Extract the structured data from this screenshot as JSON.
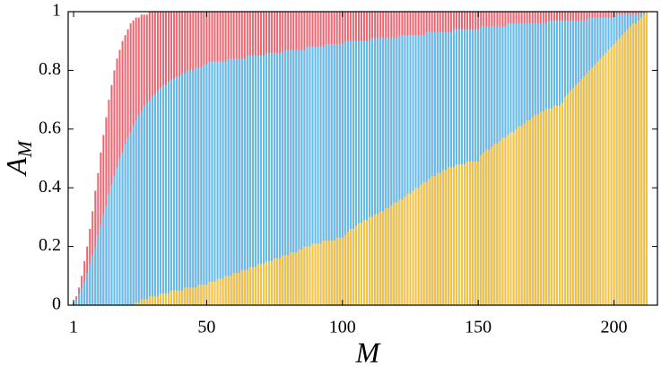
{
  "chart_data": {
    "type": "bar",
    "x_label": "M",
    "y_label": "A",
    "y_label_subscript": "M",
    "xlim": [
      -1,
      216
    ],
    "ylim": [
      0,
      1
    ],
    "xticks": [
      1,
      50,
      100,
      150,
      200
    ],
    "yticks": [
      0,
      0.2,
      0.4,
      0.6,
      0.8,
      1
    ],
    "x": [
      1,
      2,
      3,
      4,
      5,
      6,
      7,
      8,
      9,
      10,
      11,
      12,
      13,
      14,
      15,
      16,
      17,
      18,
      19,
      20,
      21,
      22,
      23,
      24,
      25,
      26,
      27,
      28,
      29,
      30,
      31,
      32,
      33,
      34,
      35,
      36,
      37,
      38,
      39,
      40,
      41,
      42,
      43,
      44,
      45,
      46,
      47,
      48,
      49,
      50,
      51,
      52,
      53,
      54,
      55,
      56,
      57,
      58,
      59,
      60,
      61,
      62,
      63,
      64,
      65,
      66,
      67,
      68,
      69,
      70,
      71,
      72,
      73,
      74,
      75,
      76,
      77,
      78,
      79,
      80,
      81,
      82,
      83,
      84,
      85,
      86,
      87,
      88,
      89,
      90,
      91,
      92,
      93,
      94,
      95,
      96,
      97,
      98,
      99,
      100,
      101,
      102,
      103,
      104,
      105,
      106,
      107,
      108,
      109,
      110,
      111,
      112,
      113,
      114,
      115,
      116,
      117,
      118,
      119,
      120,
      121,
      122,
      123,
      124,
      125,
      126,
      127,
      128,
      129,
      130,
      131,
      132,
      133,
      134,
      135,
      136,
      137,
      138,
      139,
      140,
      141,
      142,
      143,
      144,
      145,
      146,
      147,
      148,
      149,
      150,
      151,
      152,
      153,
      154,
      155,
      156,
      157,
      158,
      159,
      160,
      161,
      162,
      163,
      164,
      165,
      166,
      167,
      168,
      169,
      170,
      171,
      172,
      173,
      174,
      175,
      176,
      177,
      178,
      179,
      180,
      181,
      182,
      183,
      184,
      185,
      186,
      187,
      188,
      189,
      190,
      191,
      192,
      193,
      194,
      195,
      196,
      197,
      198,
      199,
      200,
      201,
      202,
      203,
      204,
      205,
      206,
      207,
      208,
      209,
      210,
      211,
      212
    ],
    "series": [
      {
        "color": "#ec6570",
        "values": [
          0.01,
          0.03,
          0.06,
          0.1,
          0.15,
          0.2,
          0.26,
          0.32,
          0.39,
          0.45,
          0.52,
          0.58,
          0.64,
          0.7,
          0.75,
          0.8,
          0.84,
          0.87,
          0.9,
          0.92,
          0.94,
          0.96,
          0.97,
          0.98,
          0.98,
          0.99,
          0.99,
          0.99,
          1,
          1,
          1,
          1,
          1,
          1,
          1,
          1,
          1,
          1,
          1,
          1,
          1,
          1,
          1,
          1,
          1,
          1,
          1,
          1,
          1,
          1,
          1,
          1,
          1,
          1,
          1,
          1,
          1,
          1,
          1,
          1,
          1,
          1,
          1,
          1,
          1,
          1,
          1,
          1,
          1,
          1,
          1,
          1,
          1,
          1,
          1,
          1,
          1,
          1,
          1,
          1,
          1,
          1,
          1,
          1,
          1,
          1,
          1,
          1,
          1,
          1,
          1,
          1,
          1,
          1,
          1,
          1,
          1,
          1,
          1,
          1,
          1,
          1,
          1,
          1,
          1,
          1,
          1,
          1,
          1,
          1,
          1,
          1,
          1,
          1,
          1,
          1,
          1,
          1,
          1,
          1,
          1,
          1,
          1,
          1,
          1,
          1,
          1,
          1,
          1,
          1,
          1,
          1,
          1,
          1,
          1,
          1,
          1,
          1,
          1,
          1,
          1,
          1,
          1,
          1,
          1,
          1,
          1,
          1,
          1,
          1,
          1,
          1,
          1,
          1,
          1,
          1,
          1,
          1,
          1,
          1,
          1,
          1,
          1,
          1,
          1,
          1,
          1,
          1,
          1,
          1,
          1,
          1,
          1,
          1,
          1,
          1,
          1,
          1,
          1,
          1,
          1,
          1,
          1,
          1,
          1,
          1,
          1,
          1,
          1,
          1,
          1,
          1,
          1,
          1,
          1,
          1,
          1,
          1,
          1,
          1,
          1,
          1,
          1,
          1,
          1,
          1,
          1,
          1,
          1,
          1,
          1,
          1
        ]
      },
      {
        "color": "#5cbdee",
        "values": [
          0.01,
          0.02,
          0.04,
          0.06,
          0.08,
          0.11,
          0.14,
          0.17,
          0.2,
          0.24,
          0.27,
          0.31,
          0.34,
          0.38,
          0.41,
          0.44,
          0.47,
          0.5,
          0.52,
          0.55,
          0.57,
          0.59,
          0.61,
          0.63,
          0.65,
          0.66,
          0.68,
          0.69,
          0.7,
          0.71,
          0.72,
          0.73,
          0.74,
          0.75,
          0.75,
          0.76,
          0.77,
          0.77,
          0.78,
          0.78,
          0.79,
          0.79,
          0.8,
          0.8,
          0.8,
          0.81,
          0.81,
          0.81,
          0.82,
          0.82,
          0.83,
          0.83,
          0.83,
          0.83,
          0.83,
          0.83,
          0.83,
          0.84,
          0.84,
          0.84,
          0.84,
          0.84,
          0.84,
          0.84,
          0.85,
          0.85,
          0.85,
          0.85,
          0.85,
          0.85,
          0.85,
          0.86,
          0.86,
          0.86,
          0.86,
          0.86,
          0.86,
          0.86,
          0.87,
          0.87,
          0.87,
          0.87,
          0.87,
          0.87,
          0.87,
          0.87,
          0.88,
          0.88,
          0.88,
          0.88,
          0.88,
          0.88,
          0.88,
          0.89,
          0.89,
          0.89,
          0.89,
          0.89,
          0.89,
          0.89,
          0.9,
          0.9,
          0.9,
          0.9,
          0.9,
          0.9,
          0.9,
          0.9,
          0.9,
          0.9,
          0.91,
          0.91,
          0.91,
          0.91,
          0.91,
          0.91,
          0.91,
          0.91,
          0.91,
          0.91,
          0.92,
          0.92,
          0.92,
          0.92,
          0.92,
          0.92,
          0.92,
          0.92,
          0.92,
          0.92,
          0.93,
          0.93,
          0.93,
          0.93,
          0.93,
          0.93,
          0.93,
          0.93,
          0.93,
          0.93,
          0.94,
          0.94,
          0.94,
          0.94,
          0.94,
          0.94,
          0.94,
          0.94,
          0.94,
          0.94,
          0.95,
          0.95,
          0.95,
          0.95,
          0.95,
          0.95,
          0.95,
          0.95,
          0.95,
          0.95,
          0.96,
          0.96,
          0.96,
          0.96,
          0.96,
          0.96,
          0.96,
          0.96,
          0.96,
          0.96,
          0.96,
          0.96,
          0.96,
          0.96,
          0.96,
          0.97,
          0.97,
          0.97,
          0.97,
          0.97,
          0.97,
          0.97,
          0.97,
          0.97,
          0.97,
          0.97,
          0.97,
          0.97,
          0.97,
          0.97,
          0.98,
          0.98,
          0.98,
          0.98,
          0.98,
          0.98,
          0.98,
          0.98,
          0.98,
          0.98,
          0.99,
          0.99,
          0.99,
          0.99,
          0.99,
          0.99,
          0.99,
          0.99,
          0.99,
          0.99,
          1,
          1
        ]
      },
      {
        "color": "#f6c33c",
        "values": [
          0,
          0,
          0,
          0,
          0,
          0,
          0,
          0,
          0,
          0,
          0,
          0,
          0,
          0,
          0,
          0,
          0,
          0,
          0,
          0,
          0,
          0,
          0,
          0.01,
          0.01,
          0.02,
          0.02,
          0.02,
          0.03,
          0.03,
          0.03,
          0.03,
          0.04,
          0.04,
          0.04,
          0.04,
          0.05,
          0.05,
          0.05,
          0.05,
          0.05,
          0.06,
          0.06,
          0.06,
          0.06,
          0.06,
          0.07,
          0.07,
          0.07,
          0.07,
          0.08,
          0.08,
          0.08,
          0.09,
          0.09,
          0.09,
          0.1,
          0.1,
          0.1,
          0.11,
          0.11,
          0.11,
          0.12,
          0.12,
          0.12,
          0.13,
          0.13,
          0.13,
          0.14,
          0.14,
          0.14,
          0.15,
          0.15,
          0.15,
          0.16,
          0.16,
          0.16,
          0.17,
          0.17,
          0.17,
          0.18,
          0.18,
          0.18,
          0.19,
          0.19,
          0.2,
          0.2,
          0.2,
          0.21,
          0.21,
          0.21,
          0.21,
          0.22,
          0.22,
          0.22,
          0.22,
          0.22,
          0.23,
          0.23,
          0.23,
          0.24,
          0.25,
          0.26,
          0.26,
          0.27,
          0.28,
          0.28,
          0.29,
          0.29,
          0.3,
          0.3,
          0.31,
          0.31,
          0.32,
          0.32,
          0.33,
          0.33,
          0.34,
          0.35,
          0.35,
          0.36,
          0.36,
          0.37,
          0.38,
          0.38,
          0.39,
          0.4,
          0.4,
          0.41,
          0.42,
          0.42,
          0.43,
          0.44,
          0.44,
          0.45,
          0.45,
          0.46,
          0.46,
          0.47,
          0.47,
          0.47,
          0.48,
          0.48,
          0.48,
          0.48,
          0.49,
          0.49,
          0.49,
          0.49,
          0.49,
          0.51,
          0.52,
          0.53,
          0.53,
          0.54,
          0.55,
          0.55,
          0.56,
          0.57,
          0.57,
          0.58,
          0.59,
          0.59,
          0.6,
          0.61,
          0.61,
          0.62,
          0.63,
          0.63,
          0.64,
          0.65,
          0.65,
          0.66,
          0.66,
          0.67,
          0.67,
          0.67,
          0.68,
          0.68,
          0.68,
          0.69,
          0.71,
          0.72,
          0.73,
          0.74,
          0.75,
          0.76,
          0.77,
          0.78,
          0.79,
          0.8,
          0.81,
          0.82,
          0.83,
          0.84,
          0.85,
          0.86,
          0.87,
          0.88,
          0.89,
          0.9,
          0.91,
          0.92,
          0.93,
          0.94,
          0.95,
          0.96,
          0.96,
          0.97,
          0.98,
          0.99,
          1
        ]
      }
    ]
  }
}
